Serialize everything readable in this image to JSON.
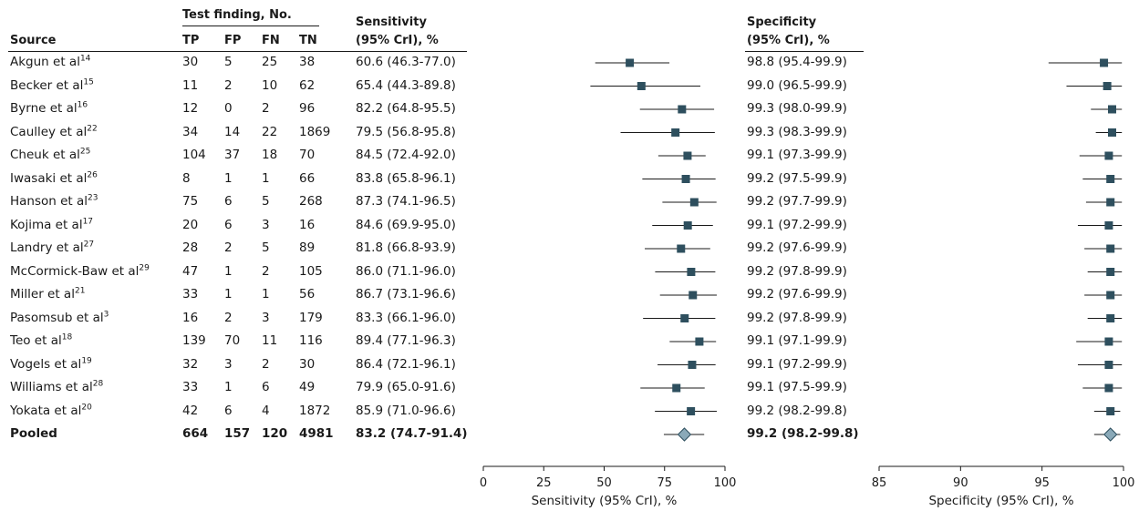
{
  "headers": {
    "source": "Source",
    "test_finding": "Test finding, No.",
    "tp": "TP",
    "fp": "FP",
    "fn": "FN",
    "tn": "TN",
    "sens_line1": "Sensitivity",
    "sens_line2": "(95% CrI), %",
    "spec_line1": "Specificity",
    "spec_line2": "(95% CrI), %"
  },
  "rows": [
    {
      "source": "Akgun et al",
      "ref": "14",
      "tp": "30",
      "fp": "5",
      "fn": "25",
      "tn": "38",
      "sens": "60.6 (46.3-77.0)",
      "spec": "98.8 (95.4-99.9)"
    },
    {
      "source": "Becker et al",
      "ref": "15",
      "tp": "11",
      "fp": "2",
      "fn": "10",
      "tn": "62",
      "sens": "65.4 (44.3-89.8)",
      "spec": "99.0 (96.5-99.9)"
    },
    {
      "source": "Byrne et al",
      "ref": "16",
      "tp": "12",
      "fp": "0",
      "fn": "2",
      "tn": "96",
      "sens": "82.2 (64.8-95.5)",
      "spec": "99.3 (98.0-99.9)"
    },
    {
      "source": "Caulley et al",
      "ref": "22",
      "tp": "34",
      "fp": "14",
      "fn": "22",
      "tn": "1869",
      "sens": "79.5 (56.8-95.8)",
      "spec": "99.3 (98.3-99.9)"
    },
    {
      "source": "Cheuk et al",
      "ref": "25",
      "tp": "104",
      "fp": "37",
      "fn": "18",
      "tn": "70",
      "sens": "84.5 (72.4-92.0)",
      "spec": "99.1 (97.3-99.9)"
    },
    {
      "source": "Iwasaki et al",
      "ref": "26",
      "tp": "8",
      "fp": "1",
      "fn": "1",
      "tn": "66",
      "sens": "83.8 (65.8-96.1)",
      "spec": "99.2 (97.5-99.9)"
    },
    {
      "source": "Hanson et al",
      "ref": "23",
      "tp": "75",
      "fp": "6",
      "fn": "5",
      "tn": "268",
      "sens": "87.3 (74.1-96.5)",
      "spec": "99.2 (97.7-99.9)"
    },
    {
      "source": "Kojima et al",
      "ref": "17",
      "tp": "20",
      "fp": "6",
      "fn": "3",
      "tn": "16",
      "sens": "84.6 (69.9-95.0)",
      "spec": "99.1 (97.2-99.9)"
    },
    {
      "source": "Landry et al",
      "ref": "27",
      "tp": "28",
      "fp": "2",
      "fn": "5",
      "tn": "89",
      "sens": "81.8 (66.8-93.9)",
      "spec": "99.2 (97.6-99.9)"
    },
    {
      "source": "McCormick-Baw et al",
      "ref": "29",
      "tp": "47",
      "fp": "1",
      "fn": "2",
      "tn": "105",
      "sens": "86.0 (71.1-96.0)",
      "spec": "99.2 (97.8-99.9)"
    },
    {
      "source": "Miller et al",
      "ref": "21",
      "tp": "33",
      "fp": "1",
      "fn": "1",
      "tn": "56",
      "sens": "86.7 (73.1-96.6)",
      "spec": "99.2 (97.6-99.9)"
    },
    {
      "source": "Pasomsub et al",
      "ref": "3",
      "tp": "16",
      "fp": "2",
      "fn": "3",
      "tn": "179",
      "sens": "83.3 (66.1-96.0)",
      "spec": "99.2 (97.8-99.9)"
    },
    {
      "source": "Teo et al",
      "ref": "18",
      "tp": "139",
      "fp": "70",
      "fn": "11",
      "tn": "116",
      "sens": "89.4 (77.1-96.3)",
      "spec": "99.1 (97.1-99.9)"
    },
    {
      "source": "Vogels et al",
      "ref": "19",
      "tp": "32",
      "fp": "3",
      "fn": "2",
      "tn": "30",
      "sens": "86.4 (72.1-96.1)",
      "spec": "99.1 (97.2-99.9)"
    },
    {
      "source": "Williams et al",
      "ref": "28",
      "tp": "33",
      "fp": "1",
      "fn": "6",
      "tn": "49",
      "sens": "79.9 (65.0-91.6)",
      "spec": "99.1 (97.5-99.9)"
    },
    {
      "source": "Yokata et al",
      "ref": "20",
      "tp": "42",
      "fp": "6",
      "fn": "4",
      "tn": "1872",
      "sens": "85.9 (71.0-96.6)",
      "spec": "99.2 (98.2-99.8)"
    }
  ],
  "pooled": {
    "source": "Pooled",
    "tp": "664",
    "fp": "157",
    "fn": "120",
    "tn": "4981",
    "sens": "83.2 (74.7-91.4)",
    "spec": "99.2 (98.2-99.8)"
  },
  "colors": {
    "marker": "#2e4f5e",
    "pooled_fill": "#8aa9b8",
    "pooled_stroke": "#2e4f5e",
    "line": "#1a1a1a"
  },
  "chart_data": [
    {
      "type": "scatter",
      "subtype": "forest-plot",
      "xlabel": "Sensitivity (95% CrI), %",
      "xlim": [
        0,
        100
      ],
      "xticks": [
        0,
        25,
        50,
        75,
        100
      ],
      "series": [
        {
          "values": [
            {
              "est": 60.6,
              "lo": 46.3,
              "hi": 77.0
            },
            {
              "est": 65.4,
              "lo": 44.3,
              "hi": 89.8
            },
            {
              "est": 82.2,
              "lo": 64.8,
              "hi": 95.5
            },
            {
              "est": 79.5,
              "lo": 56.8,
              "hi": 95.8
            },
            {
              "est": 84.5,
              "lo": 72.4,
              "hi": 92.0
            },
            {
              "est": 83.8,
              "lo": 65.8,
              "hi": 96.1
            },
            {
              "est": 87.3,
              "lo": 74.1,
              "hi": 96.5
            },
            {
              "est": 84.6,
              "lo": 69.9,
              "hi": 95.0
            },
            {
              "est": 81.8,
              "lo": 66.8,
              "hi": 93.9
            },
            {
              "est": 86.0,
              "lo": 71.1,
              "hi": 96.0
            },
            {
              "est": 86.7,
              "lo": 73.1,
              "hi": 96.6
            },
            {
              "est": 83.3,
              "lo": 66.1,
              "hi": 96.0
            },
            {
              "est": 89.4,
              "lo": 77.1,
              "hi": 96.3
            },
            {
              "est": 86.4,
              "lo": 72.1,
              "hi": 96.1
            },
            {
              "est": 79.9,
              "lo": 65.0,
              "hi": 91.6
            },
            {
              "est": 85.9,
              "lo": 71.0,
              "hi": 96.6
            }
          ]
        }
      ],
      "pooled": {
        "est": 83.2,
        "lo": 74.7,
        "hi": 91.4
      }
    },
    {
      "type": "scatter",
      "subtype": "forest-plot",
      "xlabel": "Specificity (95% CrI), %",
      "xlim": [
        85,
        100
      ],
      "xticks": [
        85,
        90,
        95,
        100
      ],
      "series": [
        {
          "values": [
            {
              "est": 98.8,
              "lo": 95.4,
              "hi": 99.9
            },
            {
              "est": 99.0,
              "lo": 96.5,
              "hi": 99.9
            },
            {
              "est": 99.3,
              "lo": 98.0,
              "hi": 99.9
            },
            {
              "est": 99.3,
              "lo": 98.3,
              "hi": 99.9
            },
            {
              "est": 99.1,
              "lo": 97.3,
              "hi": 99.9
            },
            {
              "est": 99.2,
              "lo": 97.5,
              "hi": 99.9
            },
            {
              "est": 99.2,
              "lo": 97.7,
              "hi": 99.9
            },
            {
              "est": 99.1,
              "lo": 97.2,
              "hi": 99.9
            },
            {
              "est": 99.2,
              "lo": 97.6,
              "hi": 99.9
            },
            {
              "est": 99.2,
              "lo": 97.8,
              "hi": 99.9
            },
            {
              "est": 99.2,
              "lo": 97.6,
              "hi": 99.9
            },
            {
              "est": 99.2,
              "lo": 97.8,
              "hi": 99.9
            },
            {
              "est": 99.1,
              "lo": 97.1,
              "hi": 99.9
            },
            {
              "est": 99.1,
              "lo": 97.2,
              "hi": 99.9
            },
            {
              "est": 99.1,
              "lo": 97.5,
              "hi": 99.9
            },
            {
              "est": 99.2,
              "lo": 98.2,
              "hi": 99.8
            }
          ]
        }
      ],
      "pooled": {
        "est": 99.2,
        "lo": 98.2,
        "hi": 99.8
      }
    }
  ]
}
